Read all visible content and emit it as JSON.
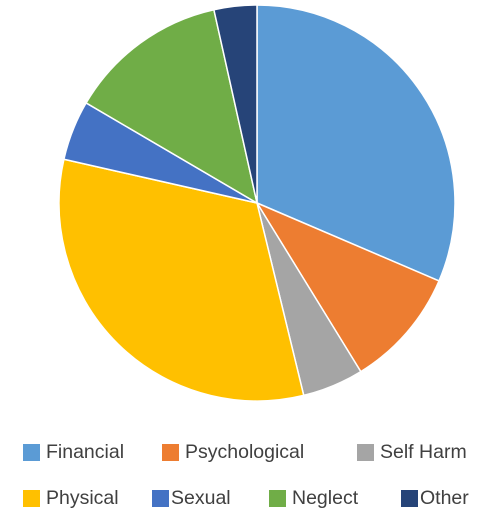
{
  "chart_data": {
    "type": "pie",
    "title": "",
    "start_angle_deg": 0,
    "direction": "clockwise",
    "slices": [
      {
        "label": "Financial",
        "value": 31.5,
        "color": "#5B9BD5"
      },
      {
        "label": "Psychological",
        "value": 9.8,
        "color": "#ED7D31"
      },
      {
        "label": "Self Harm",
        "value": 5.0,
        "color": "#A5A5A5"
      },
      {
        "label": "Physical",
        "value": 32.4,
        "color": "#FFC000"
      },
      {
        "label": "Sexual",
        "value": 4.9,
        "color": "#4472C4"
      },
      {
        "label": "Neglect",
        "value": 13.1,
        "color": "#70AD47"
      },
      {
        "label": "Other",
        "value": 3.5,
        "color": "#264478"
      }
    ],
    "legend": {
      "position": "bottom",
      "rows": [
        [
          "Financial",
          "Psychological",
          "Self Harm"
        ],
        [
          "Physical",
          "Sexual",
          "Neglect",
          "Other"
        ]
      ]
    }
  }
}
